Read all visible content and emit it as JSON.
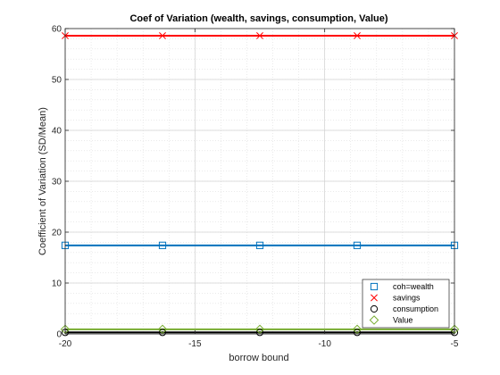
{
  "chart_data": {
    "type": "line",
    "title": "Coef of Variation (wealth, savings, consumption, Value)",
    "xlabel": "borrow bound",
    "ylabel": "Coefficient of Variation (SD/Mean)",
    "xlim": [
      -20,
      -5
    ],
    "ylim": [
      0,
      60
    ],
    "xticks": [
      -20,
      -15,
      -10,
      -5
    ],
    "yticks": [
      0,
      10,
      20,
      30,
      40,
      50,
      60
    ],
    "grid": "minor dotted",
    "legend_position": "bottom-right",
    "x": [
      -20,
      -16.25,
      -12.5,
      -8.75,
      -5
    ],
    "series": [
      {
        "name": "coh=wealth",
        "values": [
          17.4,
          17.4,
          17.4,
          17.4,
          17.4
        ],
        "color": "#0072BD",
        "marker": "square"
      },
      {
        "name": "savings",
        "values": [
          58.6,
          58.6,
          58.6,
          58.6,
          58.6
        ],
        "color": "#D95319",
        "line_color": "#FF0000",
        "marker": "x"
      },
      {
        "name": "consumption",
        "values": [
          0.3,
          0.3,
          0.3,
          0.3,
          0.3
        ],
        "color": "#000000",
        "marker": "circle"
      },
      {
        "name": "Value",
        "values": [
          0.9,
          0.9,
          0.9,
          0.9,
          0.9
        ],
        "color": "#77AC30",
        "marker": "diamond"
      }
    ]
  }
}
